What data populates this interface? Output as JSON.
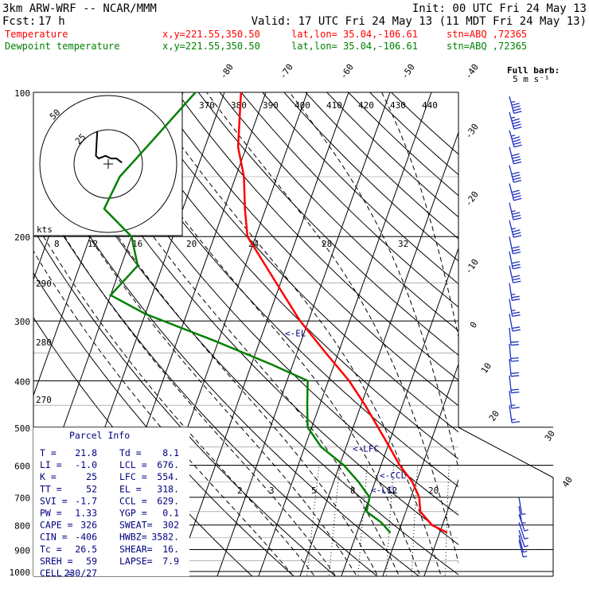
{
  "header": {
    "model": "3km ARW-WRF -- NCAR/MMM",
    "init": "Init: 00 UTC Fri 24 May 13",
    "fcst_label": "Fcst:",
    "fcst_value": "17 h",
    "valid": "Valid: 17 UTC Fri 24 May 13 (11 MDT Fri 24 May 13)",
    "temp_line": {
      "name": "Temperature",
      "xy": "x,y=221.55,350.50",
      "latlon": "lat,lon= 35.04,-106.61",
      "stn": "stn=ABQ ,72365"
    },
    "dew_line": {
      "name": "Dewpoint temperature",
      "xy": "x,y=221.55,350.50",
      "latlon": "lat,lon= 35.04,-106.61",
      "stn": "stn=ABQ ,72365"
    }
  },
  "colors": {
    "temperature": "#ff0000",
    "dewpoint": "#008000",
    "barb": "#2030c0",
    "info_text": "#000080",
    "grid": "#000000",
    "theta_e_line": "#888888"
  },
  "barb_legend": {
    "title": "Full barb:",
    "value": "5 m s⁻¹"
  },
  "hodograph": {
    "unit_label": "kts",
    "ring_labels": [
      "25",
      "50"
    ],
    "points": [
      [
        -8,
        24
      ],
      [
        -9,
        6
      ],
      [
        -7,
        4
      ],
      [
        -2,
        6
      ],
      [
        2,
        4
      ],
      [
        6,
        4
      ],
      [
        10,
        1
      ]
    ]
  },
  "chart_data": {
    "type": "line",
    "title": "",
    "pressure_levels": [
      100,
      200,
      300,
      400,
      500,
      600,
      700,
      800,
      900,
      1000
    ],
    "isotherm_labels": [
      "-80",
      "-70",
      "-60",
      "-50",
      "-40",
      "-30",
      "-20",
      "-10",
      "0",
      "10",
      "20",
      "30",
      "40"
    ],
    "theta_labels": [
      "370",
      "380",
      "390",
      "400",
      "410",
      "420",
      "430",
      "440"
    ],
    "theta_lower_labels": [
      "290",
      "280",
      "270"
    ],
    "mixing_ratio_labels": [
      "2",
      "3",
      "5",
      "8",
      "12",
      "20"
    ],
    "freezing_labels": [
      "8",
      "12",
      "16",
      "20",
      "24",
      "28",
      "32"
    ],
    "series": [
      {
        "name": "Temperature",
        "points": [
          [
            100,
            -66
          ],
          [
            130,
            -62
          ],
          [
            150,
            -58
          ],
          [
            175,
            -55
          ],
          [
            200,
            -52
          ],
          [
            250,
            -41
          ],
          [
            300,
            -32
          ],
          [
            350,
            -23
          ],
          [
            400,
            -15
          ],
          [
            450,
            -9
          ],
          [
            500,
            -4
          ],
          [
            550,
            0.5
          ],
          [
            600,
            4.5
          ],
          [
            650,
            9
          ],
          [
            700,
            12
          ],
          [
            750,
            13.5
          ],
          [
            800,
            17.5
          ],
          [
            830,
            21.8
          ]
        ]
      },
      {
        "name": "Dewpoint temperature",
        "points": [
          [
            100,
            -77
          ],
          [
            125,
            -83
          ],
          [
            150,
            -88
          ],
          [
            175,
            -89
          ],
          [
            200,
            -80
          ],
          [
            230,
            -76
          ],
          [
            265,
            -80
          ],
          [
            290,
            -70
          ],
          [
            330,
            -51
          ],
          [
            370,
            -35
          ],
          [
            400,
            -25
          ],
          [
            450,
            -23
          ],
          [
            500,
            -21
          ],
          [
            550,
            -16
          ],
          [
            600,
            -9
          ],
          [
            650,
            -4
          ],
          [
            700,
            0
          ],
          [
            750,
            0.5
          ],
          [
            790,
            5
          ],
          [
            830,
            8.1
          ]
        ]
      }
    ],
    "annotations": [
      {
        "text": "<-EL",
        "p": 318
      },
      {
        "text": "<-LFC",
        "p": 554
      },
      {
        "text": "<-CCL",
        "p": 629
      },
      {
        "text": "<-LCL",
        "p": 676
      }
    ],
    "ylim": [
      1000,
      100
    ],
    "log_scale_y": true,
    "grid": true
  },
  "wind_barbs": [
    {
      "p": 102,
      "u": -12,
      "v": 45
    },
    {
      "p": 110,
      "u": -12,
      "v": 44
    },
    {
      "p": 120,
      "u": -12,
      "v": 42
    },
    {
      "p": 130,
      "u": -10,
      "v": 40
    },
    {
      "p": 142,
      "u": -10,
      "v": 40
    },
    {
      "p": 155,
      "u": -10,
      "v": 38
    },
    {
      "p": 170,
      "u": -8,
      "v": 34
    },
    {
      "p": 185,
      "u": -8,
      "v": 32
    },
    {
      "p": 200,
      "u": -6,
      "v": 30
    },
    {
      "p": 215,
      "u": -6,
      "v": 30
    },
    {
      "p": 230,
      "u": -6,
      "v": 28
    },
    {
      "p": 250,
      "u": -4,
      "v": 26
    },
    {
      "p": 270,
      "u": -4,
      "v": 24
    },
    {
      "p": 290,
      "u": -4,
      "v": 22
    },
    {
      "p": 310,
      "u": -2,
      "v": 22
    },
    {
      "p": 335,
      "u": -2,
      "v": 22
    },
    {
      "p": 360,
      "u": -2,
      "v": 20
    },
    {
      "p": 390,
      "u": -2,
      "v": 18
    },
    {
      "p": 420,
      "u": -2,
      "v": 16
    },
    {
      "p": 450,
      "u": -2,
      "v": 14
    },
    {
      "p": 700,
      "u": -1,
      "v": 6
    },
    {
      "p": 730,
      "u": -1,
      "v": 6
    },
    {
      "p": 760,
      "u": -2,
      "v": 6
    },
    {
      "p": 790,
      "u": -2,
      "v": 6
    },
    {
      "p": 820,
      "u": -2,
      "v": 6
    },
    {
      "p": 840,
      "u": -1,
      "v": 4
    },
    {
      "p": 860,
      "u": -1,
      "v": 4
    }
  ],
  "parcel_info": {
    "title": "Parcel Info",
    "rows": [
      [
        "T  =",
        "21.8",
        "Td =",
        "8.1"
      ],
      [
        "LI =",
        "-1.0",
        "LCL =",
        "676."
      ],
      [
        "K  =",
        "25",
        "LFC =",
        "554."
      ],
      [
        "TT =",
        "52",
        "EL  =",
        "318."
      ],
      [
        "SVI =",
        "-1.7",
        "CCL =",
        "629."
      ],
      [
        "PW =",
        "1.33",
        "YGP =",
        "0.1"
      ],
      [
        "CAPE =",
        "326",
        "SWEAT=",
        "302"
      ],
      [
        "CIN  =",
        "-406",
        "HWBZ=",
        "3582."
      ],
      [
        "Tc =",
        "26.5",
        "SHEAR=",
        "16."
      ],
      [
        "SREH =",
        "59",
        "LAPSE=",
        "7.9"
      ],
      [
        "CELL =",
        "230/27",
        "",
        ""
      ]
    ]
  }
}
